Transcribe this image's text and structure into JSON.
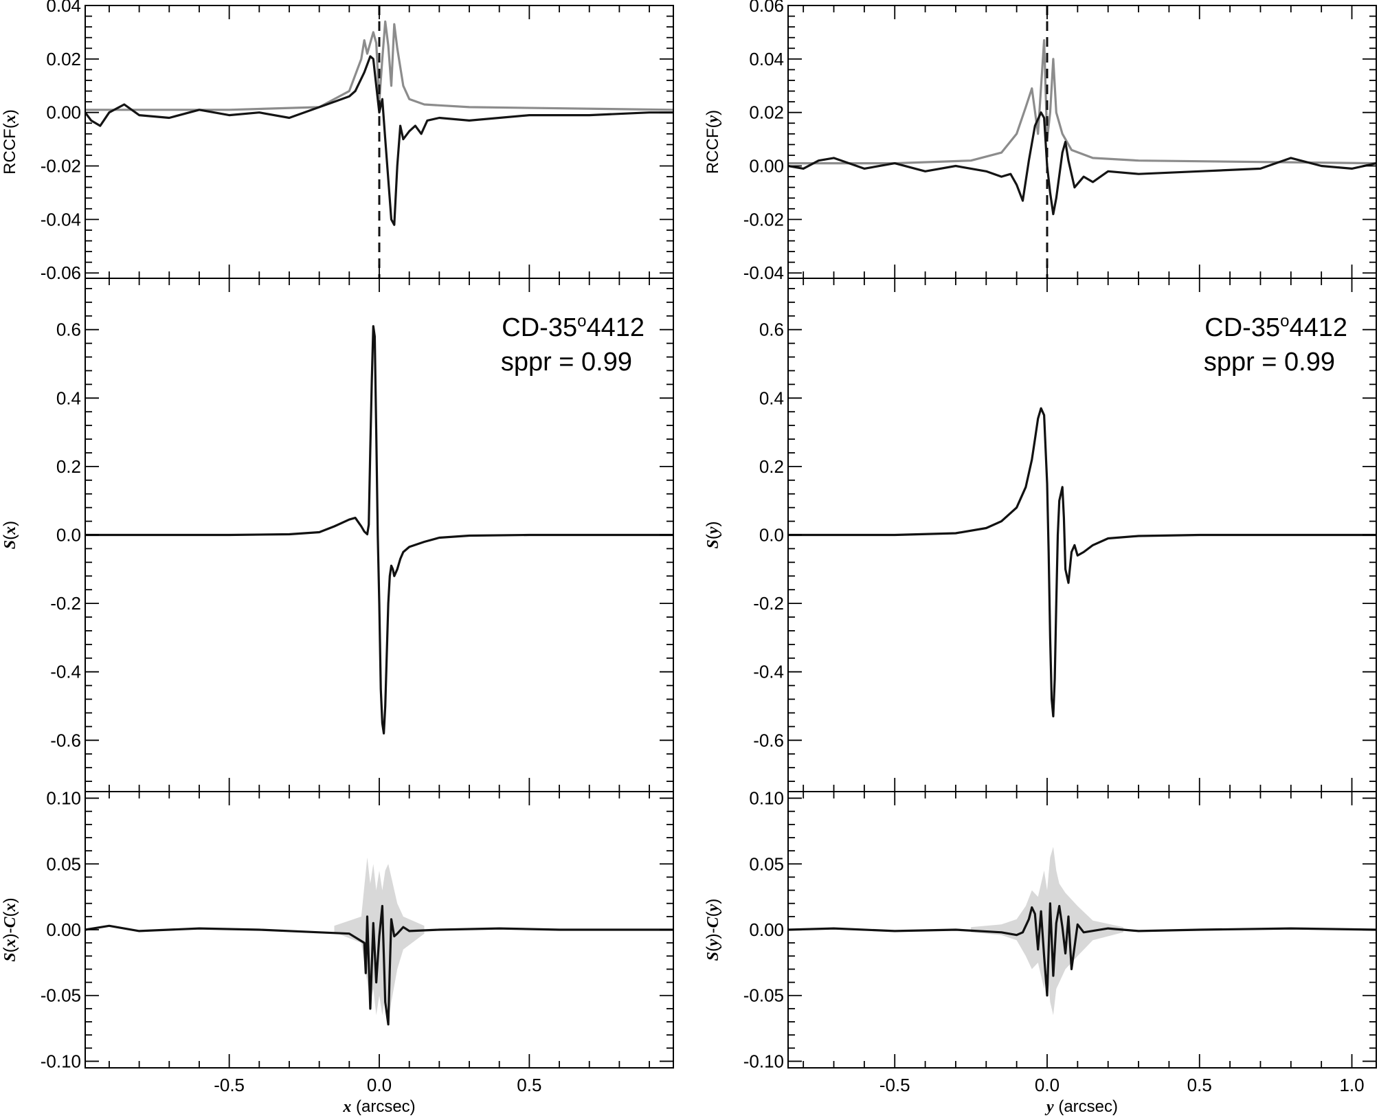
{
  "chart_data": [
    {
      "type": "line",
      "panel": "left-top",
      "ylabel": "RCCF(x)",
      "xlim": [
        -0.98,
        0.98
      ],
      "ylim": [
        -0.062,
        0.04
      ],
      "yticks": [
        "-0.06",
        "-0.04",
        "-0.02",
        "0.00",
        "0.02",
        "0.04"
      ],
      "ytick_values": [
        -0.06,
        -0.04,
        -0.02,
        0.0,
        0.02,
        0.04
      ],
      "x_tick_labels_shown": false,
      "vertical_reference_line": {
        "x": 0.0,
        "style": "dashed"
      },
      "series": [
        {
          "color": "#8c8c8c",
          "x": [
            -0.98,
            -0.5,
            -0.2,
            -0.1,
            -0.06,
            -0.05,
            -0.04,
            -0.02,
            -0.01,
            0.0,
            0.01,
            0.02,
            0.03,
            0.04,
            0.05,
            0.06,
            0.08,
            0.1,
            0.15,
            0.3,
            0.98
          ],
          "y": [
            0.001,
            0.001,
            0.002,
            0.008,
            0.02,
            0.027,
            0.022,
            0.03,
            0.026,
            0.004,
            0.02,
            0.034,
            0.025,
            0.01,
            0.033,
            0.024,
            0.01,
            0.005,
            0.003,
            0.002,
            0.001
          ]
        },
        {
          "color": "#141414",
          "x": [
            -0.98,
            -0.96,
            -0.93,
            -0.9,
            -0.85,
            -0.8,
            -0.7,
            -0.6,
            -0.5,
            -0.4,
            -0.3,
            -0.2,
            -0.15,
            -0.1,
            -0.08,
            -0.05,
            -0.03,
            -0.02,
            -0.01,
            0.0,
            0.01,
            0.02,
            0.03,
            0.04,
            0.05,
            0.06,
            0.07,
            0.08,
            0.1,
            0.12,
            0.14,
            0.16,
            0.2,
            0.3,
            0.5,
            0.7,
            0.9,
            0.98
          ],
          "y": [
            0.0,
            -0.003,
            -0.005,
            0.0,
            0.003,
            -0.001,
            -0.002,
            0.001,
            -0.001,
            0.0,
            -0.002,
            0.002,
            0.004,
            0.006,
            0.008,
            0.015,
            0.021,
            0.02,
            0.01,
            0.0,
            0.005,
            -0.01,
            -0.025,
            -0.04,
            -0.042,
            -0.02,
            -0.005,
            -0.01,
            -0.007,
            -0.005,
            -0.008,
            -0.003,
            -0.002,
            -0.003,
            -0.001,
            -0.001,
            0.0,
            0.0
          ]
        }
      ]
    },
    {
      "type": "line",
      "panel": "left-middle",
      "ylabel": "S(x)",
      "xlim": [
        -0.98,
        0.98
      ],
      "ylim": [
        -0.75,
        0.75
      ],
      "yticks": [
        "-0.6",
        "-0.4",
        "-0.2",
        "0.0",
        "0.2",
        "0.4",
        "0.6"
      ],
      "ytick_values": [
        -0.6,
        -0.4,
        -0.2,
        0.0,
        0.2,
        0.4,
        0.6
      ],
      "x_tick_labels_shown": false,
      "annotation": {
        "line1_prefix": "CD-35",
        "line1_superscript": "o",
        "line1_suffix": "4412",
        "line2": "sppr = 0.99"
      },
      "series": [
        {
          "color": "#111111",
          "x": [
            -0.98,
            -0.5,
            -0.3,
            -0.2,
            -0.15,
            -0.1,
            -0.08,
            -0.06,
            -0.05,
            -0.04,
            -0.035,
            -0.03,
            -0.025,
            -0.02,
            -0.015,
            -0.01,
            -0.005,
            0.0,
            0.005,
            0.01,
            0.015,
            0.02,
            0.025,
            0.03,
            0.035,
            0.04,
            0.045,
            0.05,
            0.06,
            0.07,
            0.08,
            0.1,
            0.15,
            0.2,
            0.3,
            0.5,
            0.98
          ],
          "y": [
            0.0,
            0.0,
            0.002,
            0.008,
            0.025,
            0.045,
            0.05,
            0.025,
            0.01,
            0.002,
            0.03,
            0.25,
            0.45,
            0.61,
            0.58,
            0.3,
            0.0,
            -0.2,
            -0.45,
            -0.55,
            -0.58,
            -0.5,
            -0.35,
            -0.2,
            -0.12,
            -0.09,
            -0.1,
            -0.12,
            -0.1,
            -0.07,
            -0.05,
            -0.035,
            -0.02,
            -0.008,
            -0.002,
            0.0,
            0.0
          ]
        }
      ]
    },
    {
      "type": "line",
      "panel": "left-bottom",
      "ylabel": "S(x)-C(x)",
      "xlabel": "x (arcsec)",
      "xlim": [
        -0.98,
        0.98
      ],
      "ylim": [
        -0.105,
        0.105
      ],
      "yticks": [
        "-0.10",
        "-0.05",
        "0.00",
        "0.05",
        "0.10"
      ],
      "ytick_values": [
        -0.1,
        -0.05,
        0.0,
        0.05,
        0.1
      ],
      "xticks": [
        "-0.5",
        "0.0",
        "0.5"
      ],
      "xtick_values": [
        -0.5,
        0.0,
        0.5
      ],
      "band": {
        "color": "#d8d8d8",
        "x": [
          -0.15,
          -0.06,
          -0.04,
          -0.03,
          -0.02,
          -0.01,
          0.0,
          0.01,
          0.02,
          0.03,
          0.04,
          0.06,
          0.08,
          0.15
        ],
        "lower": [
          -0.002,
          -0.01,
          -0.04,
          -0.055,
          -0.045,
          -0.065,
          -0.05,
          -0.065,
          -0.05,
          -0.07,
          -0.055,
          -0.03,
          -0.015,
          -0.003
        ],
        "upper": [
          0.003,
          0.01,
          0.055,
          0.035,
          0.05,
          0.03,
          0.045,
          0.03,
          0.045,
          0.05,
          0.04,
          0.02,
          0.01,
          0.003
        ]
      },
      "series": [
        {
          "color": "#111111",
          "x": [
            -0.98,
            -0.9,
            -0.8,
            -0.6,
            -0.4,
            -0.2,
            -0.1,
            -0.05,
            -0.045,
            -0.04,
            -0.03,
            -0.02,
            -0.01,
            0.0,
            0.01,
            0.02,
            0.03,
            0.035,
            0.04,
            0.05,
            0.06,
            0.08,
            0.1,
            0.2,
            0.4,
            0.6,
            0.8,
            0.98
          ],
          "y": [
            0.0,
            0.003,
            -0.001,
            0.001,
            0.0,
            -0.002,
            -0.003,
            -0.01,
            -0.033,
            0.01,
            -0.06,
            0.005,
            -0.04,
            -0.005,
            0.018,
            -0.055,
            -0.072,
            -0.03,
            0.008,
            -0.005,
            -0.003,
            0.002,
            -0.001,
            0.0,
            0.001,
            0.0,
            0.0,
            0.0
          ]
        }
      ]
    },
    {
      "type": "line",
      "panel": "right-top",
      "ylabel": "RCCF(y)",
      "xlim": [
        -0.85,
        1.08
      ],
      "ylim": [
        -0.042,
        0.06
      ],
      "yticks": [
        "-0.04",
        "-0.02",
        "0.00",
        "0.02",
        "0.04",
        "0.06"
      ],
      "ytick_values": [
        -0.04,
        -0.02,
        0.0,
        0.02,
        0.04,
        0.06
      ],
      "x_tick_labels_shown": false,
      "vertical_reference_line": {
        "x": 0.0,
        "style": "dashed"
      },
      "series": [
        {
          "color": "#8c8c8c",
          "x": [
            -0.85,
            -0.5,
            -0.25,
            -0.15,
            -0.1,
            -0.07,
            -0.05,
            -0.03,
            -0.01,
            0.0,
            0.01,
            0.02,
            0.03,
            0.05,
            0.08,
            0.15,
            0.3,
            1.08
          ],
          "y": [
            0.001,
            0.001,
            0.002,
            0.005,
            0.012,
            0.022,
            0.029,
            0.012,
            0.047,
            0.01,
            0.02,
            0.04,
            0.02,
            0.012,
            0.006,
            0.003,
            0.002,
            0.001
          ]
        },
        {
          "color": "#141414",
          "x": [
            -0.85,
            -0.8,
            -0.75,
            -0.7,
            -0.6,
            -0.5,
            -0.4,
            -0.3,
            -0.2,
            -0.15,
            -0.12,
            -0.1,
            -0.08,
            -0.06,
            -0.04,
            -0.02,
            -0.01,
            0.0,
            0.01,
            0.02,
            0.03,
            0.05,
            0.06,
            0.07,
            0.09,
            0.12,
            0.15,
            0.2,
            0.3,
            0.5,
            0.7,
            0.8,
            0.9,
            1.0,
            1.08
          ],
          "y": [
            0.0,
            -0.001,
            0.002,
            0.003,
            -0.001,
            0.001,
            -0.002,
            0.0,
            -0.002,
            -0.004,
            -0.003,
            -0.007,
            -0.013,
            0.002,
            0.015,
            0.02,
            0.018,
            0.0,
            -0.01,
            -0.018,
            -0.012,
            0.005,
            0.009,
            0.002,
            -0.008,
            -0.004,
            -0.006,
            -0.002,
            -0.003,
            -0.002,
            -0.001,
            0.003,
            0.0,
            -0.001,
            0.001
          ]
        }
      ]
    },
    {
      "type": "line",
      "panel": "right-middle",
      "ylabel": "S(y)",
      "xlim": [
        -0.85,
        1.08
      ],
      "ylim": [
        -0.75,
        0.75
      ],
      "yticks": [
        "-0.6",
        "-0.4",
        "-0.2",
        "0.0",
        "0.2",
        "0.4",
        "0.6"
      ],
      "ytick_values": [
        -0.6,
        -0.4,
        -0.2,
        0.0,
        0.2,
        0.4,
        0.6
      ],
      "x_tick_labels_shown": false,
      "annotation": {
        "line1_prefix": "CD-35",
        "line1_superscript": "o",
        "line1_suffix": "4412",
        "line2": "sppr = 0.99"
      },
      "series": [
        {
          "color": "#111111",
          "x": [
            -0.85,
            -0.5,
            -0.3,
            -0.2,
            -0.15,
            -0.1,
            -0.07,
            -0.05,
            -0.04,
            -0.03,
            -0.02,
            -0.01,
            0.0,
            0.005,
            0.01,
            0.015,
            0.02,
            0.025,
            0.03,
            0.035,
            0.04,
            0.05,
            0.055,
            0.06,
            0.07,
            0.08,
            0.09,
            0.1,
            0.12,
            0.15,
            0.2,
            0.3,
            0.5,
            1.08
          ],
          "y": [
            0.0,
            0.0,
            0.005,
            0.02,
            0.04,
            0.08,
            0.14,
            0.22,
            0.28,
            0.34,
            0.37,
            0.35,
            0.15,
            -0.05,
            -0.3,
            -0.48,
            -0.53,
            -0.42,
            -0.2,
            0.0,
            0.1,
            0.14,
            0.05,
            -0.1,
            -0.14,
            -0.05,
            -0.03,
            -0.06,
            -0.05,
            -0.03,
            -0.01,
            -0.003,
            0.0,
            0.0
          ]
        }
      ]
    },
    {
      "type": "line",
      "panel": "right-bottom",
      "ylabel": "S(y)-C(y)",
      "xlabel": "y (arcsec)",
      "xlim": [
        -0.85,
        1.08
      ],
      "ylim": [
        -0.105,
        0.105
      ],
      "yticks": [
        "-0.10",
        "-0.05",
        "0.00",
        "0.05",
        "0.10"
      ],
      "ytick_values": [
        -0.1,
        -0.05,
        0.0,
        0.05,
        0.1
      ],
      "xticks": [
        "-0.5",
        "0.0",
        "0.5",
        "1.0"
      ],
      "xtick_values": [
        -0.5,
        0.0,
        0.5,
        1.0
      ],
      "band": {
        "color": "#d8d8d8",
        "x": [
          -0.25,
          -0.15,
          -0.1,
          -0.07,
          -0.05,
          -0.03,
          -0.01,
          0.0,
          0.01,
          0.02,
          0.03,
          0.04,
          0.06,
          0.1,
          0.15,
          0.25
        ],
        "lower": [
          -0.002,
          -0.004,
          -0.008,
          -0.02,
          -0.03,
          -0.025,
          -0.045,
          -0.03,
          -0.055,
          -0.065,
          -0.045,
          -0.04,
          -0.03,
          -0.02,
          -0.008,
          -0.002
        ],
        "upper": [
          0.002,
          0.004,
          0.008,
          0.018,
          0.03,
          0.025,
          0.045,
          0.03,
          0.055,
          0.063,
          0.045,
          0.035,
          0.028,
          0.018,
          0.007,
          0.002
        ]
      },
      "series": [
        {
          "color": "#111111",
          "x": [
            -0.85,
            -0.7,
            -0.5,
            -0.3,
            -0.15,
            -0.1,
            -0.08,
            -0.06,
            -0.05,
            -0.04,
            -0.03,
            -0.02,
            -0.01,
            0.0,
            0.01,
            0.02,
            0.03,
            0.04,
            0.05,
            0.06,
            0.07,
            0.08,
            0.1,
            0.12,
            0.2,
            0.3,
            0.5,
            0.8,
            1.08
          ],
          "y": [
            0.0,
            0.001,
            -0.001,
            0.0,
            -0.002,
            -0.004,
            -0.002,
            0.008,
            0.017,
            0.012,
            -0.015,
            0.014,
            -0.02,
            -0.05,
            0.02,
            -0.035,
            0.005,
            0.018,
            0.002,
            -0.018,
            0.01,
            -0.03,
            0.004,
            -0.002,
            0.001,
            -0.001,
            0.0,
            0.001,
            0.0
          ]
        }
      ]
    }
  ]
}
